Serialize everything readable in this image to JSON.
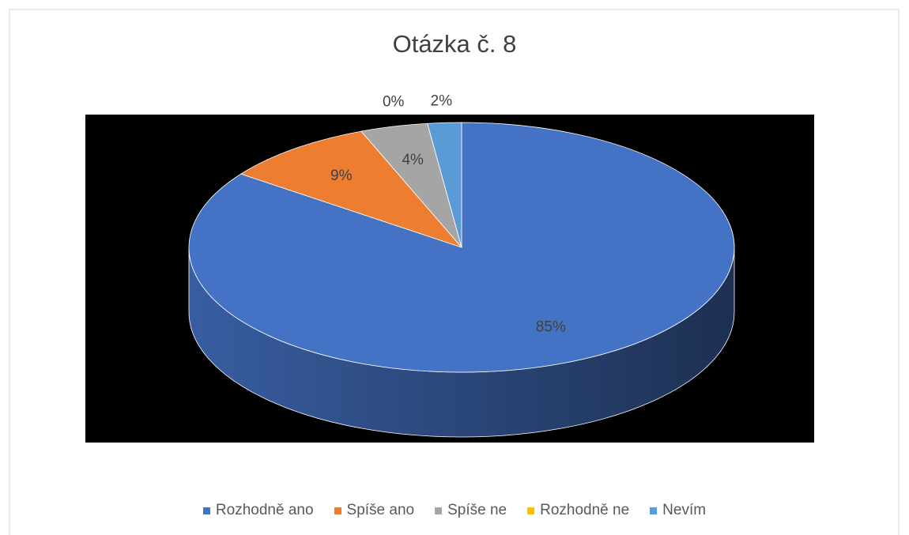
{
  "chart_data": {
    "type": "pie",
    "title": "Otázka č. 8",
    "categories": [
      "Rozhodně ano",
      "Spíše ano",
      "Spíše ne",
      "Rozhodně ne",
      "Nevím"
    ],
    "values": [
      85,
      9,
      4,
      0,
      2
    ],
    "value_labels": [
      "85%",
      "9%",
      "4%",
      "0%",
      "2%"
    ],
    "colors": [
      "#4472c4",
      "#ed7d31",
      "#a5a5a5",
      "#ffc000",
      "#5b9bd5"
    ],
    "legend": "bottom"
  }
}
